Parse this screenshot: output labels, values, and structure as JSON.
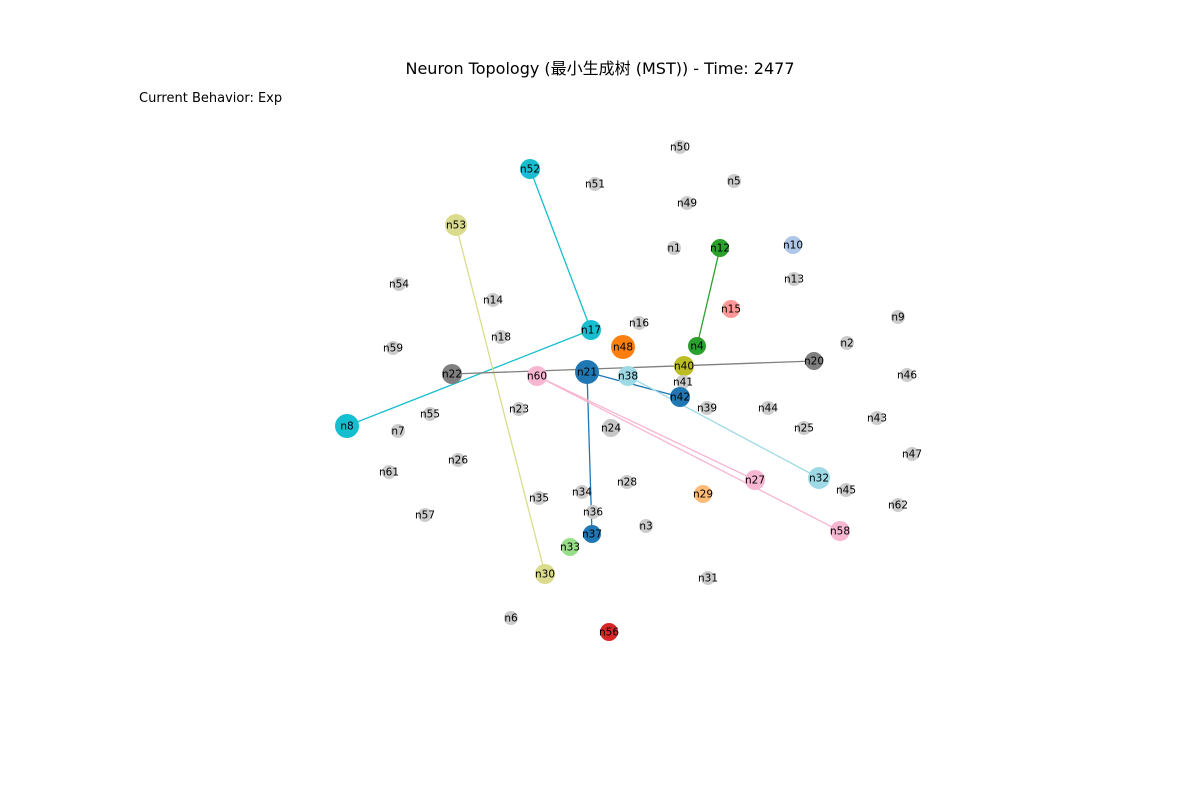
{
  "figure": {
    "title": "Neuron Topology (最小生成树 (MST)) - Time: 2477",
    "behavior_text": "Current Behavior: Exp"
  },
  "graph": {
    "nodes": [
      {
        "id": "n1",
        "color": "#cccccc"
      },
      {
        "id": "n2",
        "color": "#cccccc"
      },
      {
        "id": "n3",
        "color": "#cccccc"
      },
      {
        "id": "n4",
        "color": "#2ca02c"
      },
      {
        "id": "n5",
        "color": "#cccccc"
      },
      {
        "id": "n6",
        "color": "#cccccc"
      },
      {
        "id": "n7",
        "color": "#cccccc"
      },
      {
        "id": "n8",
        "color": "#17becf"
      },
      {
        "id": "n9",
        "color": "#cccccc"
      },
      {
        "id": "n10",
        "color": "#aec7e8"
      },
      {
        "id": "n12",
        "color": "#2ca02c"
      },
      {
        "id": "n13",
        "color": "#cccccc"
      },
      {
        "id": "n14",
        "color": "#cccccc"
      },
      {
        "id": "n15",
        "color": "#ff9896"
      },
      {
        "id": "n16",
        "color": "#cccccc"
      },
      {
        "id": "n17",
        "color": "#17becf"
      },
      {
        "id": "n18",
        "color": "#cccccc"
      },
      {
        "id": "n20",
        "color": "#7f7f7f"
      },
      {
        "id": "n21",
        "color": "#1f77b4"
      },
      {
        "id": "n22",
        "color": "#7f7f7f"
      },
      {
        "id": "n23",
        "color": "#cccccc"
      },
      {
        "id": "n24",
        "color": "#c7c7c7"
      },
      {
        "id": "n25",
        "color": "#cccccc"
      },
      {
        "id": "n26",
        "color": "#cccccc"
      },
      {
        "id": "n27",
        "color": "#f7b6d2"
      },
      {
        "id": "n28",
        "color": "#cccccc"
      },
      {
        "id": "n29",
        "color": "#ffbb78"
      },
      {
        "id": "n30",
        "color": "#dbdb8d"
      },
      {
        "id": "n31",
        "color": "#cccccc"
      },
      {
        "id": "n32",
        "color": "#9edae5"
      },
      {
        "id": "n33",
        "color": "#98df8a"
      },
      {
        "id": "n34",
        "color": "#cccccc"
      },
      {
        "id": "n35",
        "color": "#cccccc"
      },
      {
        "id": "n36",
        "color": "#cccccc"
      },
      {
        "id": "n37",
        "color": "#1f77b4"
      },
      {
        "id": "n38",
        "color": "#9edae5"
      },
      {
        "id": "n39",
        "color": "#cccccc"
      },
      {
        "id": "n40",
        "color": "#bcbd22"
      },
      {
        "id": "n41",
        "color": "#cccccc"
      },
      {
        "id": "n42",
        "color": "#1f77b4"
      },
      {
        "id": "n43",
        "color": "#cccccc"
      },
      {
        "id": "n44",
        "color": "#cccccc"
      },
      {
        "id": "n45",
        "color": "#cccccc"
      },
      {
        "id": "n46",
        "color": "#cccccc"
      },
      {
        "id": "n47",
        "color": "#cccccc"
      },
      {
        "id": "n48",
        "color": "#ff7f0e"
      },
      {
        "id": "n49",
        "color": "#cccccc"
      },
      {
        "id": "n50",
        "color": "#cccccc"
      },
      {
        "id": "n51",
        "color": "#cccccc"
      },
      {
        "id": "n52",
        "color": "#17becf"
      },
      {
        "id": "n53",
        "color": "#dbdb8d"
      },
      {
        "id": "n54",
        "color": "#cccccc"
      },
      {
        "id": "n55",
        "color": "#cccccc"
      },
      {
        "id": "n56",
        "color": "#d62728"
      },
      {
        "id": "n57",
        "color": "#cccccc"
      },
      {
        "id": "n58",
        "color": "#f7b6d2"
      },
      {
        "id": "n59",
        "color": "#cccccc"
      },
      {
        "id": "n60",
        "color": "#f7b6d2"
      },
      {
        "id": "n61",
        "color": "#cccccc"
      },
      {
        "id": "n62",
        "color": "#cccccc"
      }
    ],
    "edges": [
      {
        "source": "n52",
        "target": "n17",
        "color": "#17becf"
      },
      {
        "source": "n17",
        "target": "n8",
        "color": "#17becf"
      },
      {
        "source": "n53",
        "target": "n30",
        "color": "#dbdb8d"
      },
      {
        "source": "n12",
        "target": "n4",
        "color": "#2ca02c"
      },
      {
        "source": "n22",
        "target": "n20",
        "color": "#7f7f7f"
      },
      {
        "source": "n21",
        "target": "n42",
        "color": "#1f77b4"
      },
      {
        "source": "n21",
        "target": "n37",
        "color": "#1f77b4"
      },
      {
        "source": "n38",
        "target": "n32",
        "color": "#9edae5"
      },
      {
        "source": "n60",
        "target": "n27",
        "color": "#f7b6d2"
      },
      {
        "source": "n60",
        "target": "n58",
        "color": "#f7b6d2"
      }
    ]
  }
}
